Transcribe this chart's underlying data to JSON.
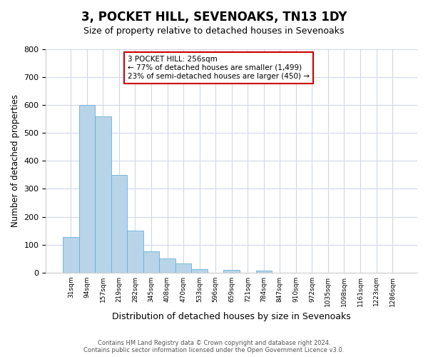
{
  "title": "3, POCKET HILL, SEVENOAKS, TN13 1DY",
  "subtitle": "Size of property relative to detached houses in Sevenoaks",
  "xlabel": "Distribution of detached houses by size in Sevenoaks",
  "ylabel": "Number of detached properties",
  "bar_color": "#b8d4e8",
  "bar_edge_color": "#6aafd4",
  "bin_labels": [
    "31sqm",
    "94sqm",
    "157sqm",
    "219sqm",
    "282sqm",
    "345sqm",
    "408sqm",
    "470sqm",
    "533sqm",
    "596sqm",
    "659sqm",
    "721sqm",
    "784sqm",
    "847sqm",
    "910sqm",
    "972sqm",
    "1035sqm",
    "1098sqm",
    "1161sqm",
    "1223sqm",
    "1286sqm"
  ],
  "bar_heights": [
    128,
    600,
    560,
    350,
    150,
    75,
    50,
    33,
    13,
    0,
    10,
    0,
    8,
    0,
    0,
    0,
    0,
    0,
    0,
    0,
    0
  ],
  "ylim": [
    0,
    800
  ],
  "yticks": [
    0,
    100,
    200,
    300,
    400,
    500,
    600,
    700,
    800
  ],
  "annotation_text": "3 POCKET HILL: 256sqm\n← 77% of detached houses are smaller (1,499)\n23% of semi-detached houses are larger (450) →",
  "annotation_box_color": "#ffffff",
  "annotation_box_edge": "#cc0000",
  "footer_line1": "Contains HM Land Registry data © Crown copyright and database right 2024.",
  "footer_line2": "Contains public sector information licensed under the Open Government Licence v3.0.",
  "background_color": "#ffffff",
  "grid_color": "#d0d8e8"
}
